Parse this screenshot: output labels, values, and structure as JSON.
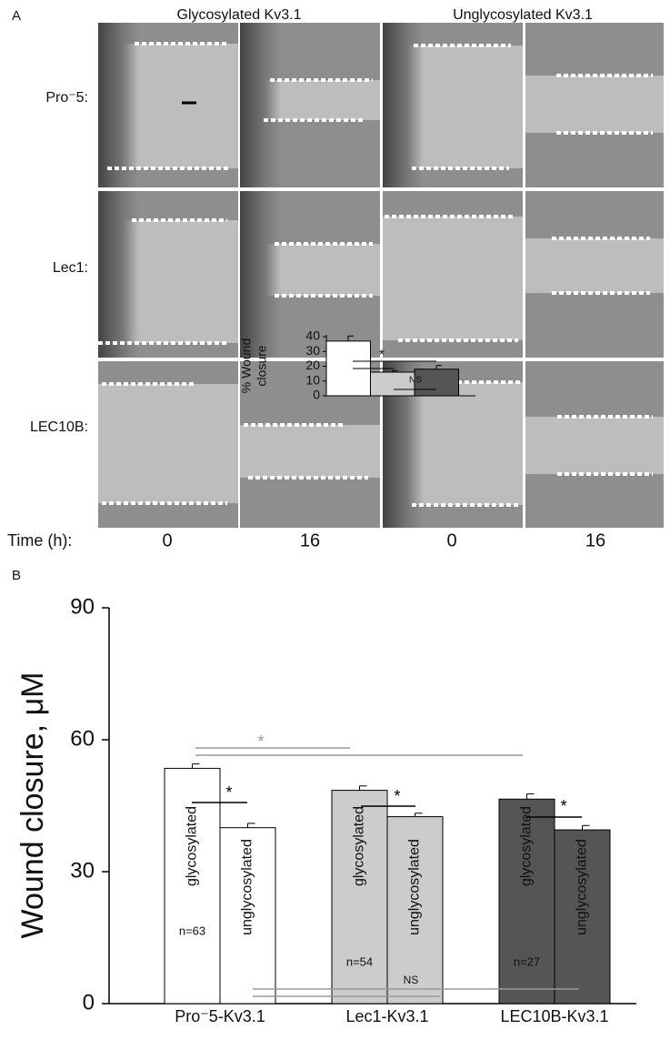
{
  "panel_a": {
    "label": "A",
    "columns": [
      "Glycosylated  Kv3.1",
      "Unglycosylated  Kv3.1"
    ],
    "rows": [
      "Pro⁻5:",
      "Lec1:",
      "LEC10B:"
    ],
    "time_label": "Time (h):",
    "times": [
      "0",
      "16",
      "0",
      "16"
    ]
  },
  "panel_b_label": "B",
  "chart_data": [
    {
      "type": "bar",
      "ylabel": "Wound closure, μM",
      "categories": [
        "Pro⁻5-Kv3.1",
        "Lec1-Kv3.1",
        "LEC10B-Kv3.1"
      ],
      "colors": [
        "#ffffff",
        "#cccccc",
        "#555555"
      ],
      "series": [
        {
          "name": "glycosylated",
          "values": [
            53.5,
            48.5,
            46.5
          ],
          "errors": [
            1,
            1,
            1.2
          ]
        },
        {
          "name": "unglycosylated",
          "values": [
            40,
            42.5,
            39.5
          ],
          "errors": [
            1,
            0.8,
            1
          ]
        }
      ],
      "n_labels": [
        "n=63",
        "n=54",
        "n=27"
      ],
      "annotations": [
        "*",
        "*",
        "*",
        "*",
        "NS"
      ],
      "ylim": [
        0,
        90
      ],
      "yticks": [
        0,
        30,
        60,
        90
      ]
    },
    {
      "type": "bar",
      "ylabel": [
        "% Wound",
        "closure"
      ],
      "values": [
        37,
        16,
        18
      ],
      "errors": [
        3.5,
        1,
        2.5
      ],
      "colors": [
        "#ffffff",
        "#cccccc",
        "#555555"
      ],
      "annotations": [
        "*",
        "NS"
      ],
      "ylim": [
        0,
        40
      ],
      "yticks": [
        0,
        10,
        20,
        30,
        40
      ]
    }
  ]
}
